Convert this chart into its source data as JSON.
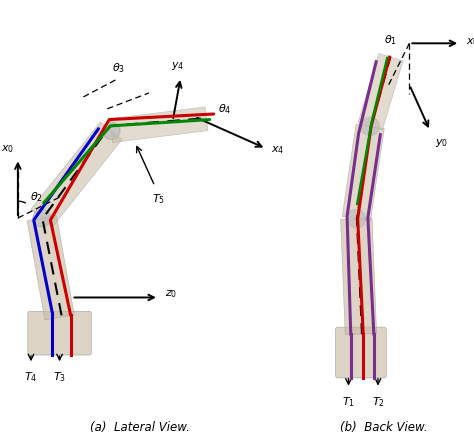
{
  "fig_width": 4.74,
  "fig_height": 4.46,
  "background": "#ffffff",
  "subfig_a_label": "(a)  Lateral View.",
  "subfig_b_label": "(b)  Back View.",
  "left_panel": {
    "finger_color": "#c8b8a0",
    "finger_alpha": 0.45,
    "tendon_red": "#cc0000",
    "tendon_blue": "#0000cc",
    "tendon_green": "#008800",
    "axis_color": "#000000"
  },
  "right_panel": {
    "finger_color": "#c8b8a0",
    "finger_alpha": 0.45,
    "tendon_red": "#cc0000",
    "tendon_purple": "#7b2d8b",
    "tendon_green": "#008800",
    "axis_color": "#000000"
  }
}
